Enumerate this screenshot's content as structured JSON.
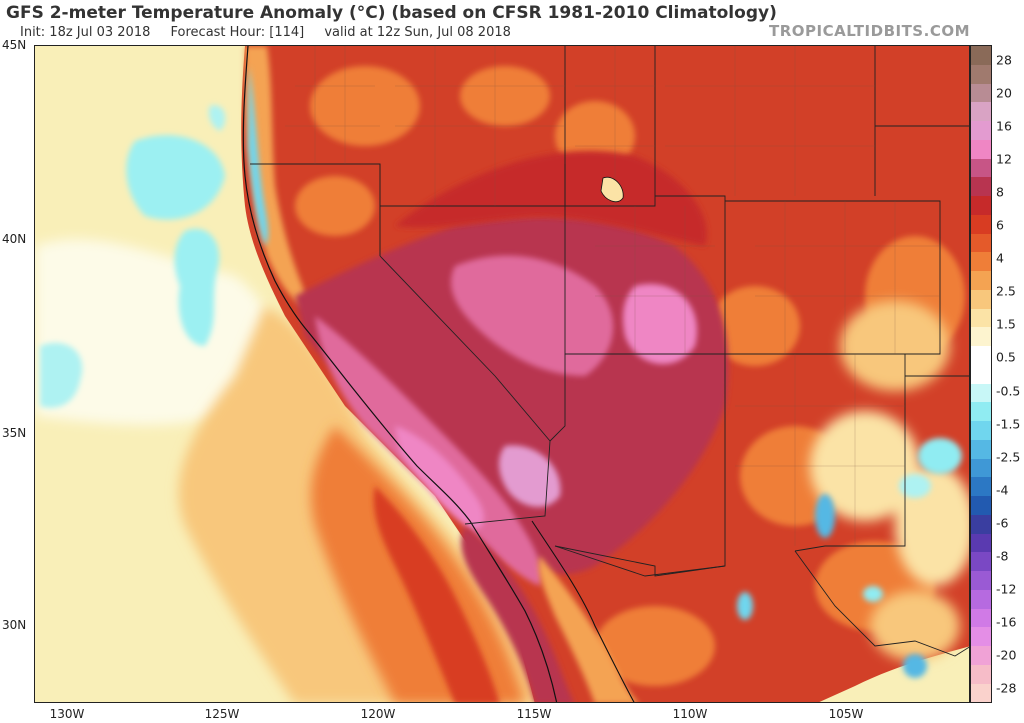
{
  "header": {
    "title": "GFS 2-meter Temperature Anomaly (°C) (based on CFSR 1981-2010 Climatology)",
    "init": "Init: 18z Jul 03 2018",
    "forecast_hour": "Forecast Hour: [114]",
    "valid": "valid at 12z Sun, Jul 08 2018",
    "brand": "TROPICALTIDBITS.COM"
  },
  "axes": {
    "lat_labels": [
      "45N",
      "40N",
      "35N",
      "30N"
    ],
    "lon_labels": [
      "130W",
      "125W",
      "120W",
      "115W",
      "110W",
      "105W"
    ]
  },
  "colorbar": {
    "labels": [
      "28",
      "20",
      "16",
      "12",
      "8",
      "6",
      "4",
      "2.5",
      "1.5",
      "0.5",
      "-0.5",
      "-1.5",
      "-2.5",
      "-4",
      "-6",
      "-8",
      "-12",
      "-16",
      "-20",
      "-28"
    ],
    "colors": [
      "#8a6a58",
      "#a07a6e",
      "#b88c94",
      "#d9a3c4",
      "#e39bd0",
      "#ef86c4",
      "#c75586",
      "#b83450",
      "#c62a2a",
      "#d83c22",
      "#e45a2a",
      "#ef7e38",
      "#f4a352",
      "#f8c77c",
      "#fbe3a6",
      "#fdf4cf",
      "#ffffff",
      "#ffffff",
      "#c8f7f7",
      "#90ecf2",
      "#70d6ee",
      "#55b8e4",
      "#3f98d6",
      "#2c78c4",
      "#225ab0",
      "#3a3ea0",
      "#5a3ab0",
      "#7a48c4",
      "#9a5ad4",
      "#b66ae0",
      "#d07ae6",
      "#e48ee6",
      "#f0a2d6",
      "#f6bcc8",
      "#fad2cc"
    ]
  }
}
